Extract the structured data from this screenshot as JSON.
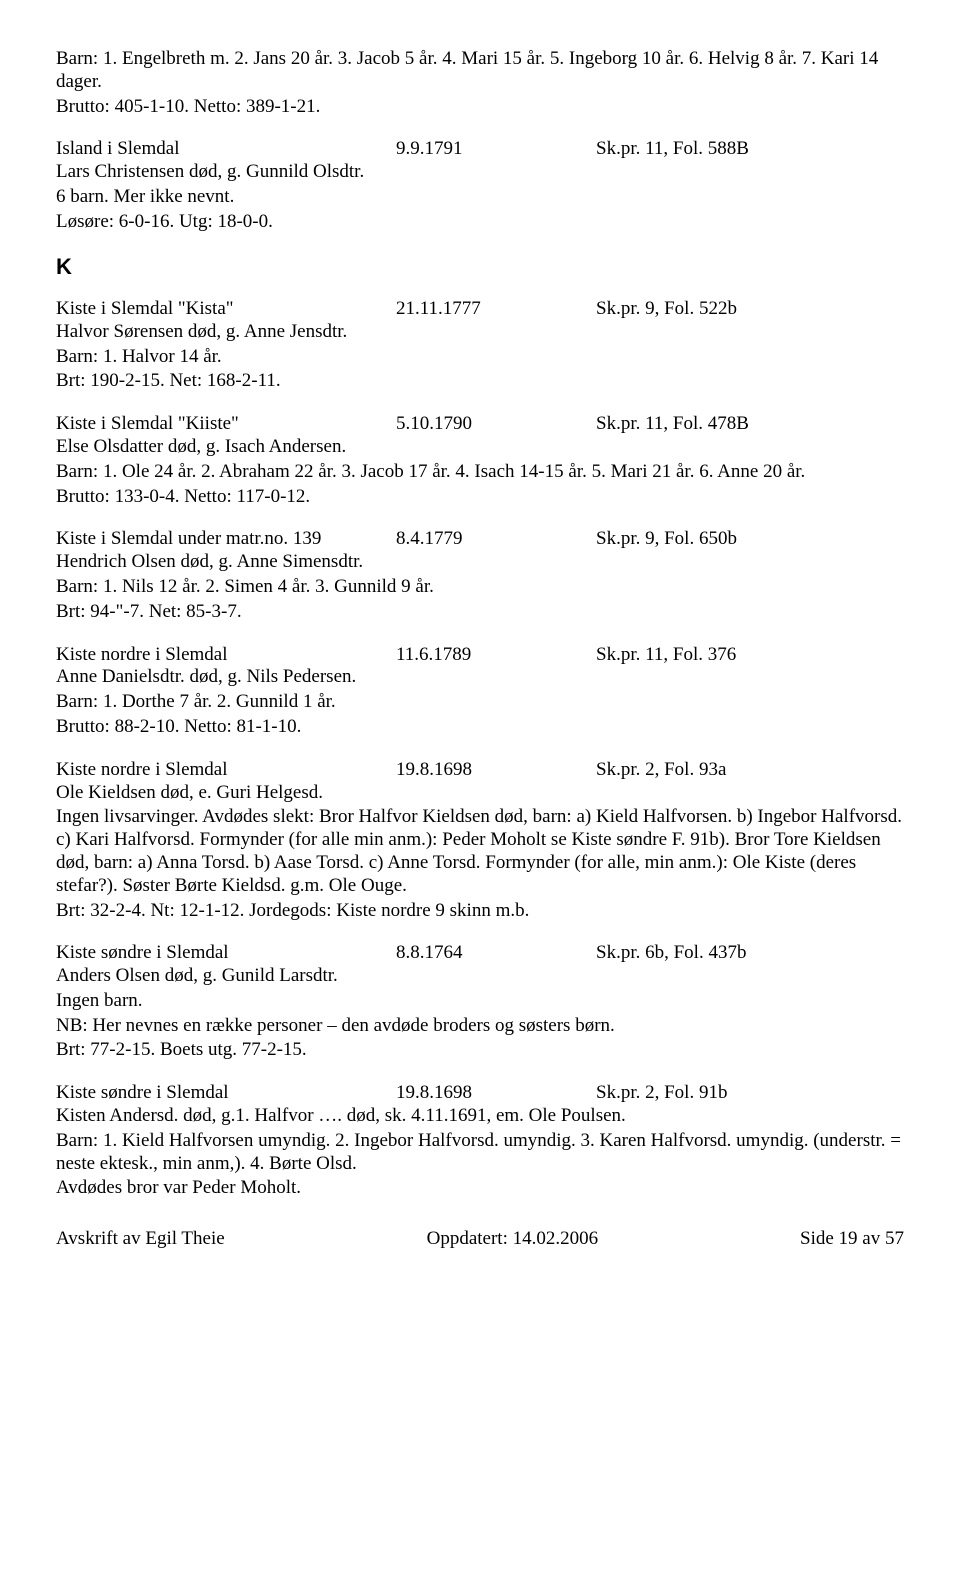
{
  "intro": {
    "l1": "Barn: 1. Engelbreth m. 2. Jans 20 år. 3. Jacob 5 år. 4. Mari 15 år. 5. Ingeborg 10 år. 6. Helvig 8 år. 7. Kari 14 dager.",
    "l2": "Brutto: 405-1-10. Netto: 389-1-21."
  },
  "e1": {
    "place": "Island i Slemdal",
    "date": "9.9.1791",
    "ref": "Sk.pr. 11, Fol. 588B",
    "l1": "Lars Christensen død, g. Gunnild Olsdtr.",
    "l2": "6 barn. Mer ikke nevnt.",
    "l3": "Løsøre: 6-0-16. Utg: 18-0-0."
  },
  "sectionK": "K",
  "e2": {
    "place": "Kiste i Slemdal \"Kista\"",
    "date": "21.11.1777",
    "ref": "Sk.pr. 9, Fol. 522b",
    "l1": "Halvor Sørensen død, g. Anne Jensdtr.",
    "l2": "Barn: 1. Halvor 14 år.",
    "l3": "Brt: 190-2-15. Net: 168-2-11."
  },
  "e3": {
    "place": "Kiste i Slemdal \"Kiiste\"",
    "date": "5.10.1790",
    "ref": "Sk.pr. 11, Fol. 478B",
    "l1": "Else Olsdatter død, g. Isach Andersen.",
    "l2": "Barn: 1. Ole 24 år. 2. Abraham 22 år. 3. Jacob 17 år. 4. Isach 14-15 år. 5. Mari 21 år. 6. Anne 20 år.",
    "l3": "Brutto: 133-0-4. Netto: 117-0-12."
  },
  "e4": {
    "place": "Kiste i Slemdal under matr.no. 139",
    "date": "8.4.1779",
    "ref": "Sk.pr. 9, Fol. 650b",
    "l1": "Hendrich Olsen død, g. Anne Simensdtr.",
    "l2": "Barn: 1. Nils 12 år. 2. Simen 4 år. 3. Gunnild 9 år.",
    "l3": "Brt: 94-\"-7. Net: 85-3-7."
  },
  "e5": {
    "place": "Kiste nordre i Slemdal",
    "date": "11.6.1789",
    "ref": "Sk.pr. 11, Fol. 376",
    "l1": "Anne Danielsdtr. død, g. Nils Pedersen.",
    "l2": "Barn: 1. Dorthe 7 år. 2. Gunnild 1 år.",
    "l3": "Brutto: 88-2-10. Netto: 81-1-10."
  },
  "e6": {
    "place": "Kiste nordre i Slemdal",
    "date": "19.8.1698",
    "ref": "Sk.pr. 2, Fol. 93a",
    "l1": "Ole Kieldsen død, e. Guri Helgesd.",
    "l2": "Ingen livsarvinger. Avdødes slekt: Bror Halfvor Kieldsen død, barn: a) Kield Halfvorsen. b) Ingebor Halfvorsd. c) Kari Halfvorsd. Formynder (for alle min anm.): Peder Moholt se Kiste søndre F. 91b). Bror Tore Kieldsen død, barn: a) Anna Torsd. b) Aase Torsd. c) Anne Torsd. Formynder (for alle, min anm.): Ole Kiste (deres stefar?). Søster Børte Kieldsd. g.m. Ole Ouge.",
    "l3": "Brt: 32-2-4. Nt: 12-1-12. Jordegods: Kiste nordre 9 skinn m.b."
  },
  "e7": {
    "place": "Kiste søndre i Slemdal",
    "date": "8.8.1764",
    "ref": "Sk.pr. 6b, Fol. 437b",
    "l1": "Anders Olsen død, g. Gunild Larsdtr.",
    "l2": "Ingen barn.",
    "l3": "NB: Her nevnes en række personer – den avdøde broders og søsters børn.",
    "l4": "Brt: 77-2-15. Boets utg. 77-2-15."
  },
  "e8": {
    "place": "Kiste søndre i Slemdal",
    "date": "19.8.1698",
    "ref": "Sk.pr. 2, Fol. 91b",
    "l1": "Kisten Andersd. død, g.1. Halfvor …. død, sk. 4.11.1691, em. Ole Poulsen.",
    "l2": "Barn: 1. Kield Halfvorsen umyndig. 2. Ingebor Halfvorsd. umyndig. 3. Karen Halfvorsd. umyndig. (understr. = neste ektesk., min anm,). 4. Børte Olsd.",
    "l3": "Avdødes bror var Peder Moholt."
  },
  "footer": {
    "left": "Avskrift av Egil Theie",
    "center": "Oppdatert: 14.02.2006",
    "right": "Side 19 av 57"
  }
}
